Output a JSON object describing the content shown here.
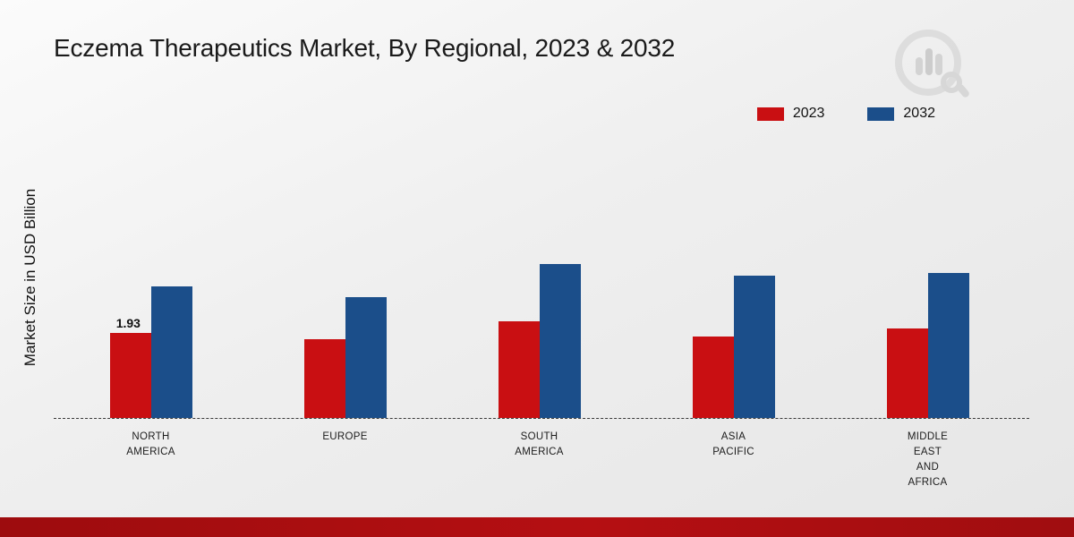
{
  "title": "Eczema Therapeutics Market, By Regional, 2023 & 2032",
  "y_axis_label": "Market Size in USD Billion",
  "legend": {
    "items": [
      {
        "label": "2023",
        "color": "#c90f12"
      },
      {
        "label": "2032",
        "color": "#1b4e8a"
      }
    ]
  },
  "chart_data": {
    "type": "bar",
    "title": "Eczema Therapeutics Market, By Regional, 2023 & 2032",
    "ylabel": "Market Size in USD Billion",
    "categories": [
      "North America",
      "Europe",
      "South America",
      "Asia Pacific",
      "Middle East and Africa"
    ],
    "category_display": [
      "NORTH\nAMERICA",
      "EUROPE",
      "SOUTH\nAMERICA",
      "ASIA\nPACIFIC",
      "MIDDLE\nEAST\nAND\nAFRICA"
    ],
    "series": [
      {
        "name": "2023",
        "color": "#c90f12",
        "values": [
          1.93,
          1.8,
          2.2,
          1.85,
          2.05
        ]
      },
      {
        "name": "2032",
        "color": "#1b4e8a",
        "values": [
          3.0,
          2.75,
          3.5,
          3.25,
          3.3
        ]
      }
    ],
    "data_labels": [
      {
        "series": "2023",
        "category": "North America",
        "text": "1.93"
      }
    ],
    "ylim": [
      0,
      4
    ],
    "grid": false,
    "legend_position": "top-right",
    "axis_style": "dashed-baseline-only",
    "units": "USD Billion"
  },
  "footer": {
    "accent_color": "#a30d10"
  }
}
